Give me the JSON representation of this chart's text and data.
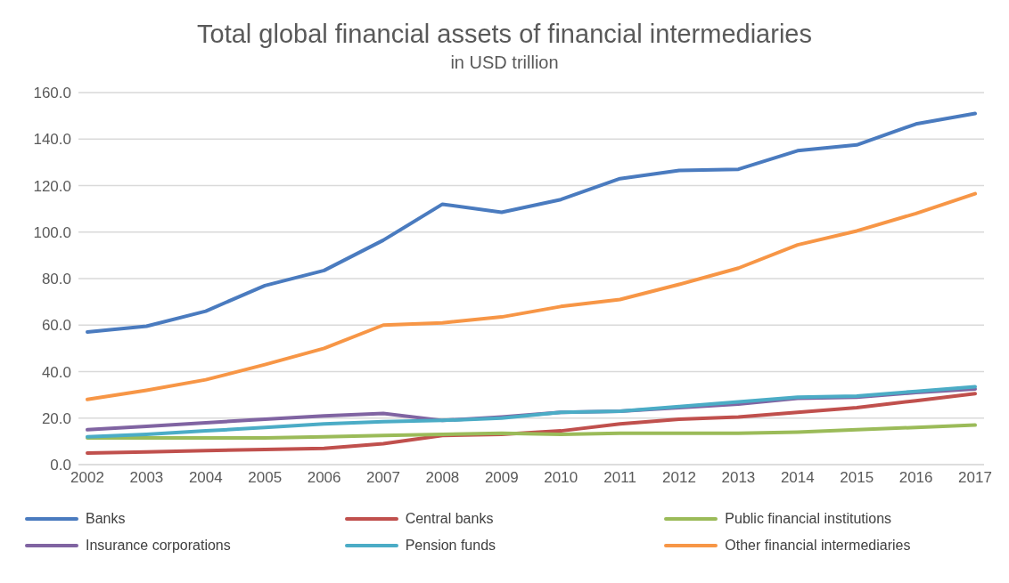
{
  "chart_data": {
    "type": "line",
    "title": "Total global financial assets of financial intermediaries",
    "subtitle": "in USD trillion",
    "categories": [
      "2002",
      "2003",
      "2004",
      "2005",
      "2006",
      "2007",
      "2008",
      "2009",
      "2010",
      "2011",
      "2012",
      "2013",
      "2014",
      "2015",
      "2016",
      "2017"
    ],
    "series": [
      {
        "name": "Banks",
        "color": "#4a7bbf",
        "values": [
          57,
          59.5,
          66,
          77,
          83.5,
          96.5,
          112,
          108.5,
          114,
          123,
          126.5,
          127,
          135,
          137.5,
          146.5,
          151
        ]
      },
      {
        "name": "Central banks",
        "color": "#c0504d",
        "values": [
          5,
          5.5,
          6,
          6.5,
          7,
          9,
          12.5,
          13,
          14.5,
          17.5,
          19.5,
          20.5,
          22.5,
          24.5,
          27.5,
          30.5
        ]
      },
      {
        "name": "Public financial institutions",
        "color": "#9bbb59",
        "values": [
          11.5,
          11.5,
          11.5,
          11.5,
          12,
          12.5,
          13,
          13.5,
          13,
          13.5,
          13.5,
          13.5,
          14,
          15,
          16,
          17
        ]
      },
      {
        "name": "Insurance corporations",
        "color": "#8064a2",
        "values": [
          15,
          16.5,
          18,
          19.5,
          21,
          22,
          19,
          20.5,
          22.5,
          23,
          24.5,
          26,
          28.5,
          29,
          31,
          32.5
        ]
      },
      {
        "name": "Pension funds",
        "color": "#4bacc6",
        "values": [
          12,
          13,
          14.5,
          16,
          17.5,
          18.5,
          19,
          20,
          22.5,
          23,
          25,
          27,
          29,
          29.5,
          31.5,
          33.5
        ]
      },
      {
        "name": "Other financial intermediaries",
        "color": "#f79646",
        "values": [
          28,
          32,
          36.5,
          43,
          50,
          60,
          61,
          63.5,
          68,
          71,
          77.5,
          84.5,
          94.5,
          100.5,
          108,
          116.5
        ]
      }
    ],
    "ylim": [
      0,
      160
    ],
    "yticks": [
      {
        "value": 0,
        "label": "0.0"
      },
      {
        "value": 20,
        "label": "20.0"
      },
      {
        "value": 40,
        "label": "40.0"
      },
      {
        "value": 60,
        "label": "60.0"
      },
      {
        "value": 80,
        "label": "80.0"
      },
      {
        "value": 100,
        "label": "100.0"
      },
      {
        "value": 120,
        "label": "120.0"
      },
      {
        "value": 140,
        "label": "140.0"
      },
      {
        "value": 160,
        "label": "160.0"
      }
    ],
    "grid": "y",
    "legend": "bottom",
    "marker": "none",
    "line_style": "solid"
  }
}
